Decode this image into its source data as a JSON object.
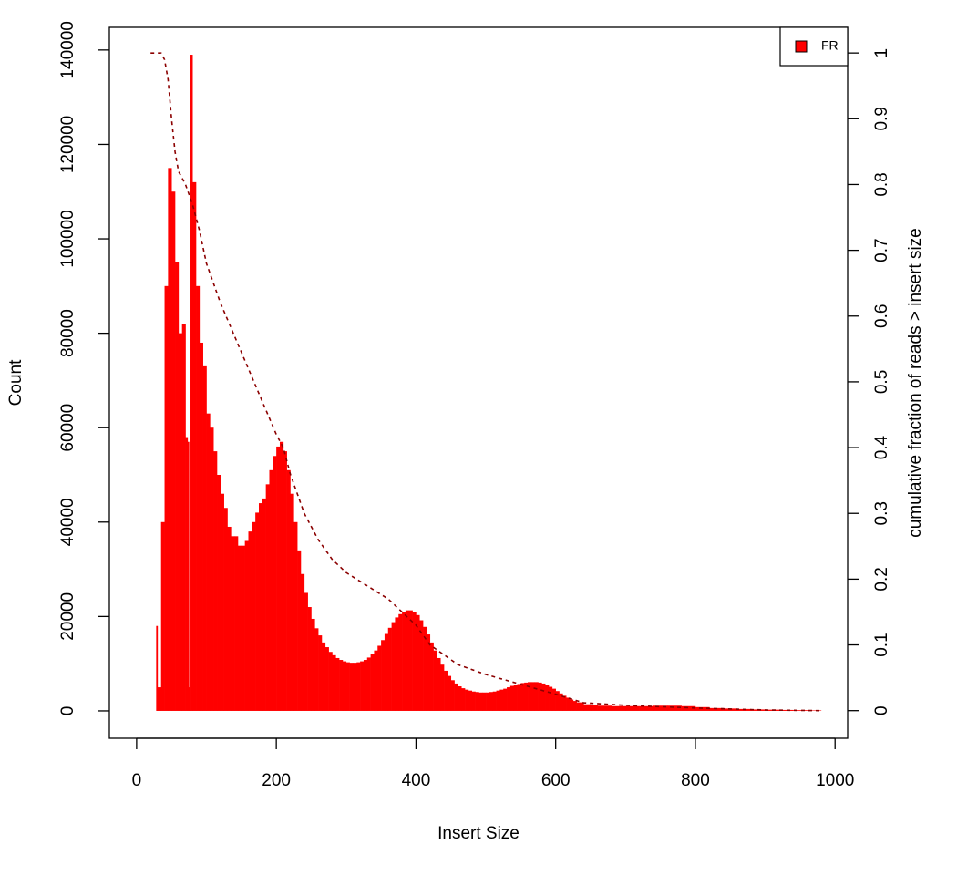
{
  "chart_data": {
    "type": "bar",
    "xlabel": "Insert Size",
    "ylabel": "Count",
    "y2label": "cumulative fraction of reads > insert size",
    "x": [
      20,
      25,
      28,
      30,
      35,
      40,
      45,
      50,
      55,
      60,
      65,
      70,
      73,
      75,
      77,
      78,
      80,
      85,
      90,
      95,
      100,
      105,
      110,
      115,
      120,
      125,
      130,
      135,
      140,
      145,
      150,
      155,
      160,
      165,
      170,
      175,
      180,
      185,
      190,
      195,
      200,
      205,
      210,
      215,
      220,
      225,
      230,
      235,
      240,
      245,
      250,
      255,
      260,
      265,
      270,
      275,
      280,
      285,
      290,
      295,
      300,
      305,
      310,
      315,
      320,
      325,
      330,
      335,
      340,
      345,
      350,
      355,
      360,
      365,
      370,
      375,
      380,
      385,
      390,
      395,
      400,
      405,
      410,
      415,
      420,
      425,
      430,
      435,
      440,
      445,
      450,
      455,
      460,
      465,
      470,
      475,
      480,
      485,
      490,
      495,
      500,
      505,
      510,
      515,
      520,
      525,
      530,
      535,
      540,
      545,
      550,
      555,
      560,
      565,
      570,
      575,
      580,
      585,
      590,
      595,
      600,
      605,
      610,
      615,
      620,
      625,
      630,
      640,
      650,
      660,
      680,
      700,
      720,
      740,
      760,
      780,
      800,
      820,
      840,
      860,
      880,
      900,
      920,
      940,
      960,
      980
    ],
    "series": [
      {
        "name": "FR",
        "color": "#ff0000",
        "values": [
          0,
          0,
          18000,
          5000,
          40000,
          90000,
          115000,
          110000,
          95000,
          80000,
          82000,
          58000,
          57000,
          5000,
          139000,
          139000,
          112000,
          90000,
          78000,
          73000,
          63000,
          60000,
          55000,
          50000,
          46000,
          43000,
          39000,
          37000,
          37000,
          35000,
          35000,
          36000,
          38000,
          40000,
          42000,
          44000,
          45000,
          48000,
          51000,
          54000,
          56000,
          57000,
          55000,
          51000,
          46000,
          40000,
          34000,
          29000,
          25000,
          22000,
          19500,
          17500,
          16000,
          14500,
          13500,
          12500,
          11800,
          11200,
          10800,
          10500,
          10300,
          10200,
          10200,
          10300,
          10500,
          10800,
          11300,
          12000,
          12800,
          13800,
          15000,
          16300,
          17600,
          18800,
          19800,
          20500,
          21000,
          21300,
          21300,
          21000,
          20300,
          19200,
          17800,
          16200,
          14500,
          12800,
          11200,
          9800,
          8500,
          7400,
          6500,
          5800,
          5200,
          4800,
          4500,
          4300,
          4100,
          4000,
          3900,
          3900,
          3900,
          4000,
          4100,
          4300,
          4500,
          4700,
          5000,
          5300,
          5500,
          5700,
          5900,
          6000,
          6100,
          6100,
          6100,
          6000,
          5800,
          5500,
          5100,
          4700,
          4200,
          3700,
          3200,
          2800,
          2400,
          2100,
          1800,
          1400,
          1200,
          1100,
          1000,
          1000,
          1000,
          1100,
          1100,
          1000,
          800,
          600,
          500,
          400,
          300,
          250,
          200,
          150,
          100,
          0
        ]
      }
    ],
    "cumulative": {
      "color": "#8b0000",
      "axis": "y2",
      "x": [
        20,
        35,
        40,
        45,
        50,
        55,
        60,
        70,
        80,
        90,
        100,
        120,
        140,
        160,
        180,
        200,
        210,
        220,
        240,
        260,
        280,
        300,
        330,
        360,
        380,
        400,
        420,
        440,
        460,
        500,
        550,
        600,
        640,
        700,
        800,
        900,
        980
      ],
      "values": [
        1,
        1,
        0.99,
        0.96,
        0.9,
        0.85,
        0.82,
        0.8,
        0.77,
        0.73,
        0.68,
        0.62,
        0.57,
        0.52,
        0.47,
        0.42,
        0.4,
        0.36,
        0.3,
        0.26,
        0.23,
        0.21,
        0.19,
        0.17,
        0.15,
        0.13,
        0.1,
        0.085,
        0.07,
        0.055,
        0.04,
        0.025,
        0.012,
        0.008,
        0.004,
        0.001,
        0
      ]
    },
    "xlim": [
      -39,
      1018
    ],
    "xticks": [
      0,
      200,
      400,
      600,
      800,
      1000
    ],
    "ylim": [
      -5800,
      144800
    ],
    "yticks": [
      0,
      20000,
      40000,
      60000,
      80000,
      100000,
      120000,
      140000
    ],
    "y2lim": [
      -0.042,
      1.039
    ],
    "y2ticks": [
      0,
      0.1,
      0.2,
      0.3,
      0.4,
      0.5,
      0.6,
      0.7,
      0.8,
      0.9,
      1
    ],
    "legend": "top-right"
  }
}
